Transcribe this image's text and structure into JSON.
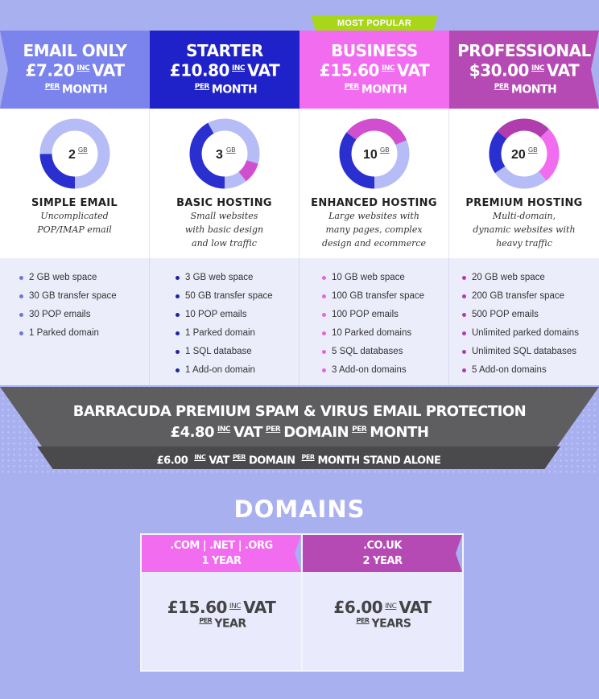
{
  "popular_badge": "MOST POPULAR",
  "plans": [
    {
      "name": "EMAIL ONLY",
      "price": "£7.20",
      "inc": "INC",
      "vat": "VAT",
      "per": "PER",
      "month": "MONTH",
      "gb": "2",
      "gb_unit": "GB",
      "tier": "SIMPLE EMAIL",
      "desc": [
        "Uncomplicated",
        "POP/IMAP email"
      ],
      "features": [
        "2 GB web space",
        "30 GB transfer space",
        "30 POP emails",
        "1 Parked domain"
      ],
      "color": "#7b83ec",
      "dot": "#6c78d8"
    },
    {
      "name": "STARTER",
      "price": "£10.80",
      "inc": "INC",
      "vat": "VAT",
      "per": "PER",
      "month": "MONTH",
      "gb": "3",
      "gb_unit": "GB",
      "tier": "BASIC HOSTING",
      "desc": [
        "Small websites",
        "with basic design",
        "and low traffic"
      ],
      "features": [
        "3 GB web space",
        "50 GB transfer space",
        "10 POP emails",
        "1 Parked domain",
        "1 SQL database",
        "1 Add-on domain"
      ],
      "color": "#1f22c8",
      "dot": "#1f22a8"
    },
    {
      "name": "BUSINESS",
      "price": "£15.60",
      "inc": "INC",
      "vat": "VAT",
      "per": "PER",
      "month": "MONTH",
      "gb": "10",
      "gb_unit": "GB",
      "tier": "ENHANCED HOSTING",
      "desc": [
        "Large websites with",
        "many pages, complex",
        "design and ecommerce"
      ],
      "features": [
        "10 GB web space",
        "100 GB transfer space",
        "100 POP emails",
        "10 Parked domains",
        "5 SQL databases",
        "3 Add-on domains"
      ],
      "color": "#f26cf0",
      "dot": "#e763e5"
    },
    {
      "name": "PROFESSIONAL",
      "price": "$30.00",
      "inc": "INC",
      "vat": "VAT",
      "per": "PER",
      "month": "MONTH",
      "gb": "20",
      "gb_unit": "GB",
      "tier": "PREMIUM HOSTING",
      "desc": [
        "Multi-domain,",
        "dynamic websites with",
        "heavy traffic"
      ],
      "features": [
        "20 GB web space",
        "200 GB transfer space",
        "500 POP emails",
        "Unlimited parked domains",
        "Unlimited SQL databases",
        "5 Add-on domains"
      ],
      "color": "#b64ab4",
      "dot": "#b03cae"
    }
  ],
  "barracuda": {
    "line1": "BARRACUDA PREMIUM SPAM & VIRUS EMAIL PROTECTION",
    "price": "£4.80",
    "inc": "INC",
    "vat": "VAT",
    "per": "PER",
    "domain": "DOMAIN",
    "month": "MONTH",
    "alone_price": "£6.00",
    "alone_tail": "MONTH STAND ALONE"
  },
  "domains": {
    "title": "DOMAINS",
    "cards": [
      {
        "head1": ".COM | .NET | .ORG",
        "head2": "1 YEAR",
        "price": "£15.60",
        "inc": "INC",
        "vat": "VAT",
        "per": "PER",
        "unit": "YEAR",
        "color": "#f26cf0"
      },
      {
        "head1": ".CO.UK",
        "head2": "2 YEAR",
        "price": "£6.00",
        "inc": "INC",
        "vat": "VAT",
        "per": "PER",
        "unit": "YEARS",
        "color": "#b64ab4"
      }
    ]
  }
}
